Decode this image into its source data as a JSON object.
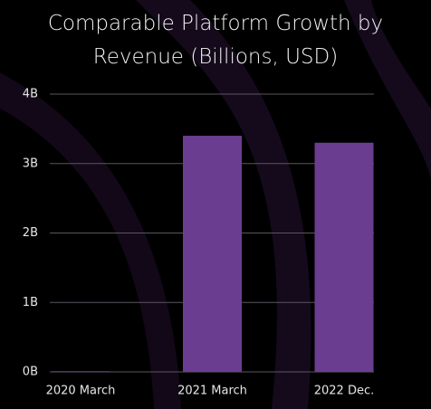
{
  "chart_data": {
    "type": "bar",
    "title": "Comparable Platform Growth by Revenue (Billions, USD)",
    "categories": [
      "2020 March",
      "2021 March",
      "2022 Dec."
    ],
    "values": [
      0.01,
      3.4,
      3.3
    ],
    "color": "#6b3d90",
    "ylim": [
      0,
      4
    ],
    "yticks": [
      {
        "value": 0,
        "label": "0B"
      },
      {
        "value": 1,
        "label": "1B"
      },
      {
        "value": 2,
        "label": "2B"
      },
      {
        "value": 3,
        "label": "3B"
      },
      {
        "value": 4,
        "label": "4B"
      }
    ],
    "grid": true
  }
}
